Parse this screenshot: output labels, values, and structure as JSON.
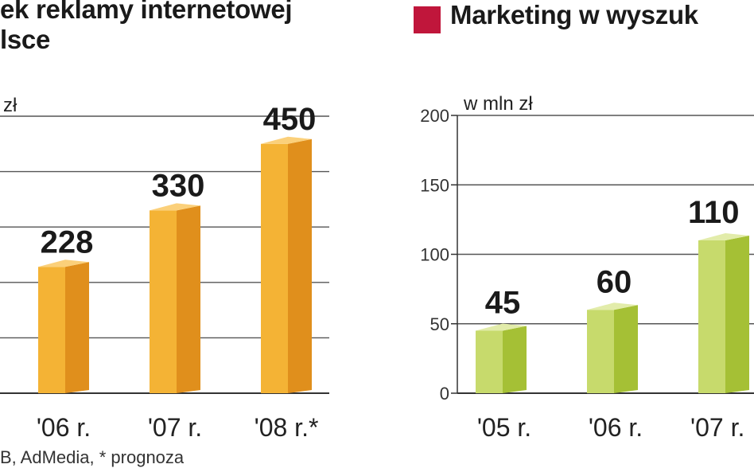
{
  "colors": {
    "orange_front": "#f4b335",
    "orange_side": "#e08f1c",
    "orange_top": "#fbd07a",
    "green_front": "#c7da6c",
    "green_side": "#a5c035",
    "green_top": "#e2ecaa",
    "legend_swatch": "#c0163b",
    "grid": "#555555"
  },
  "left_panel": {
    "title_line1": "ek reklamy internetowej",
    "title_line2": "lsce",
    "unit_label": "zł",
    "source": "B, AdMedia, * prognoza"
  },
  "right_panel": {
    "legend_label": "Marketing w wyszuk",
    "unit_label": "w mln zł"
  },
  "chart_data": [
    {
      "type": "bar",
      "title": "ek reklamy internetowej lsce",
      "ylabel": "zł",
      "categories": [
        "'06 r.",
        "'07 r.",
        "'08 r.*"
      ],
      "values": [
        228,
        330,
        450
      ],
      "data_labels": [
        "228",
        "330",
        "450"
      ],
      "ylim": [
        0,
        500
      ],
      "grid": true
    },
    {
      "type": "bar",
      "title": "Marketing w wyszuk",
      "ylabel": "w mln zł",
      "categories": [
        "'05 r.",
        "'06 r.",
        "'07 r."
      ],
      "values": [
        45,
        60,
        110
      ],
      "data_labels": [
        "45",
        "60",
        "110"
      ],
      "ylim": [
        0,
        200
      ],
      "yticks": [
        "0",
        "50",
        "100",
        "150",
        "200"
      ],
      "grid": true
    }
  ]
}
